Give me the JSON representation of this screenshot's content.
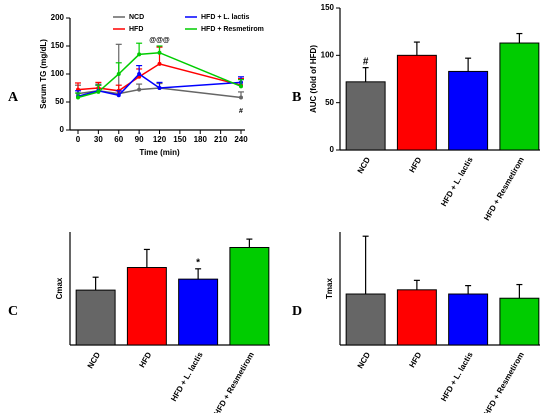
{
  "chart_data": [
    {
      "panel": "A",
      "type": "line",
      "xlabel": "Time (min)",
      "ylabel": "Serum TG (mg/dL)",
      "x": [
        0,
        30,
        60,
        90,
        120,
        240
      ],
      "xlim": [
        0,
        240
      ],
      "xticks": [
        0,
        30,
        60,
        90,
        120,
        150,
        180,
        210,
        240
      ],
      "ylim": [
        0,
        200
      ],
      "yticks": [
        0,
        50,
        100,
        150,
        200
      ],
      "series": [
        {
          "name": "NCD",
          "color": "#666666",
          "values": [
            65,
            70,
            65,
            72,
            75,
            58
          ],
          "errors": [
            15,
            12,
            88,
            10,
            8,
            10
          ]
        },
        {
          "name": "HFD",
          "color": "#ff0000",
          "values": [
            72,
            75,
            70,
            95,
            118,
            80
          ],
          "errors": [
            12,
            10,
            10,
            14,
            30,
            12
          ]
        },
        {
          "name": "HFD + L. lactis",
          "color": "#0000ff",
          "values": [
            60,
            70,
            62,
            100,
            75,
            85
          ],
          "errors": [
            10,
            10,
            8,
            15,
            10,
            10
          ]
        },
        {
          "name": "HFD + Resmetirom",
          "color": "#00cc00",
          "values": [
            58,
            68,
            100,
            135,
            138,
            78
          ],
          "errors": [
            8,
            12,
            20,
            20,
            12,
            12
          ]
        }
      ],
      "annotations": [
        {
          "text": "@@@",
          "x": 120,
          "position": "above"
        },
        {
          "text": "#",
          "x": 240,
          "position": "below"
        }
      ]
    },
    {
      "panel": "B",
      "type": "bar",
      "ylabel": "AUC (fold of HFD)",
      "categories": [
        "NCD",
        "HFD",
        "HFD + L. lactis",
        "HFD + Resmetirom"
      ],
      "colors": [
        "#666666",
        "#ff0000",
        "#0000ff",
        "#00cc00"
      ],
      "values": [
        72,
        100,
        83,
        113
      ],
      "errors": [
        15,
        14,
        14,
        10
      ],
      "ylim": [
        0,
        150
      ],
      "yticks": [
        0,
        50,
        100,
        150
      ],
      "annotations": [
        {
          "text": "#",
          "category": 0
        }
      ]
    },
    {
      "panel": "C",
      "type": "bar",
      "ylabel": "Cmax",
      "categories": [
        "NCD",
        "HFD",
        "HFD + L. lactis",
        "HFD + Resmetirom"
      ],
      "colors": [
        "#666666",
        "#ff0000",
        "#0000ff",
        "#00cc00"
      ],
      "values": [
        85,
        120,
        102,
        151
      ],
      "errors": [
        20,
        28,
        16,
        13
      ],
      "ylim": [
        0,
        175
      ],
      "annotations": [
        {
          "text": "*",
          "category": 2
        }
      ]
    },
    {
      "panel": "D",
      "type": "bar",
      "ylabel": "Tmax",
      "categories": [
        "NCD",
        "HFD",
        "HFD + L. lactis",
        "HFD + Resmetirom"
      ],
      "colors": [
        "#666666",
        "#ff0000",
        "#0000ff",
        "#00cc00"
      ],
      "values": [
        97,
        105,
        97,
        89
      ],
      "errors": [
        110,
        18,
        16,
        26
      ],
      "ylim": [
        0,
        215
      ]
    }
  ]
}
